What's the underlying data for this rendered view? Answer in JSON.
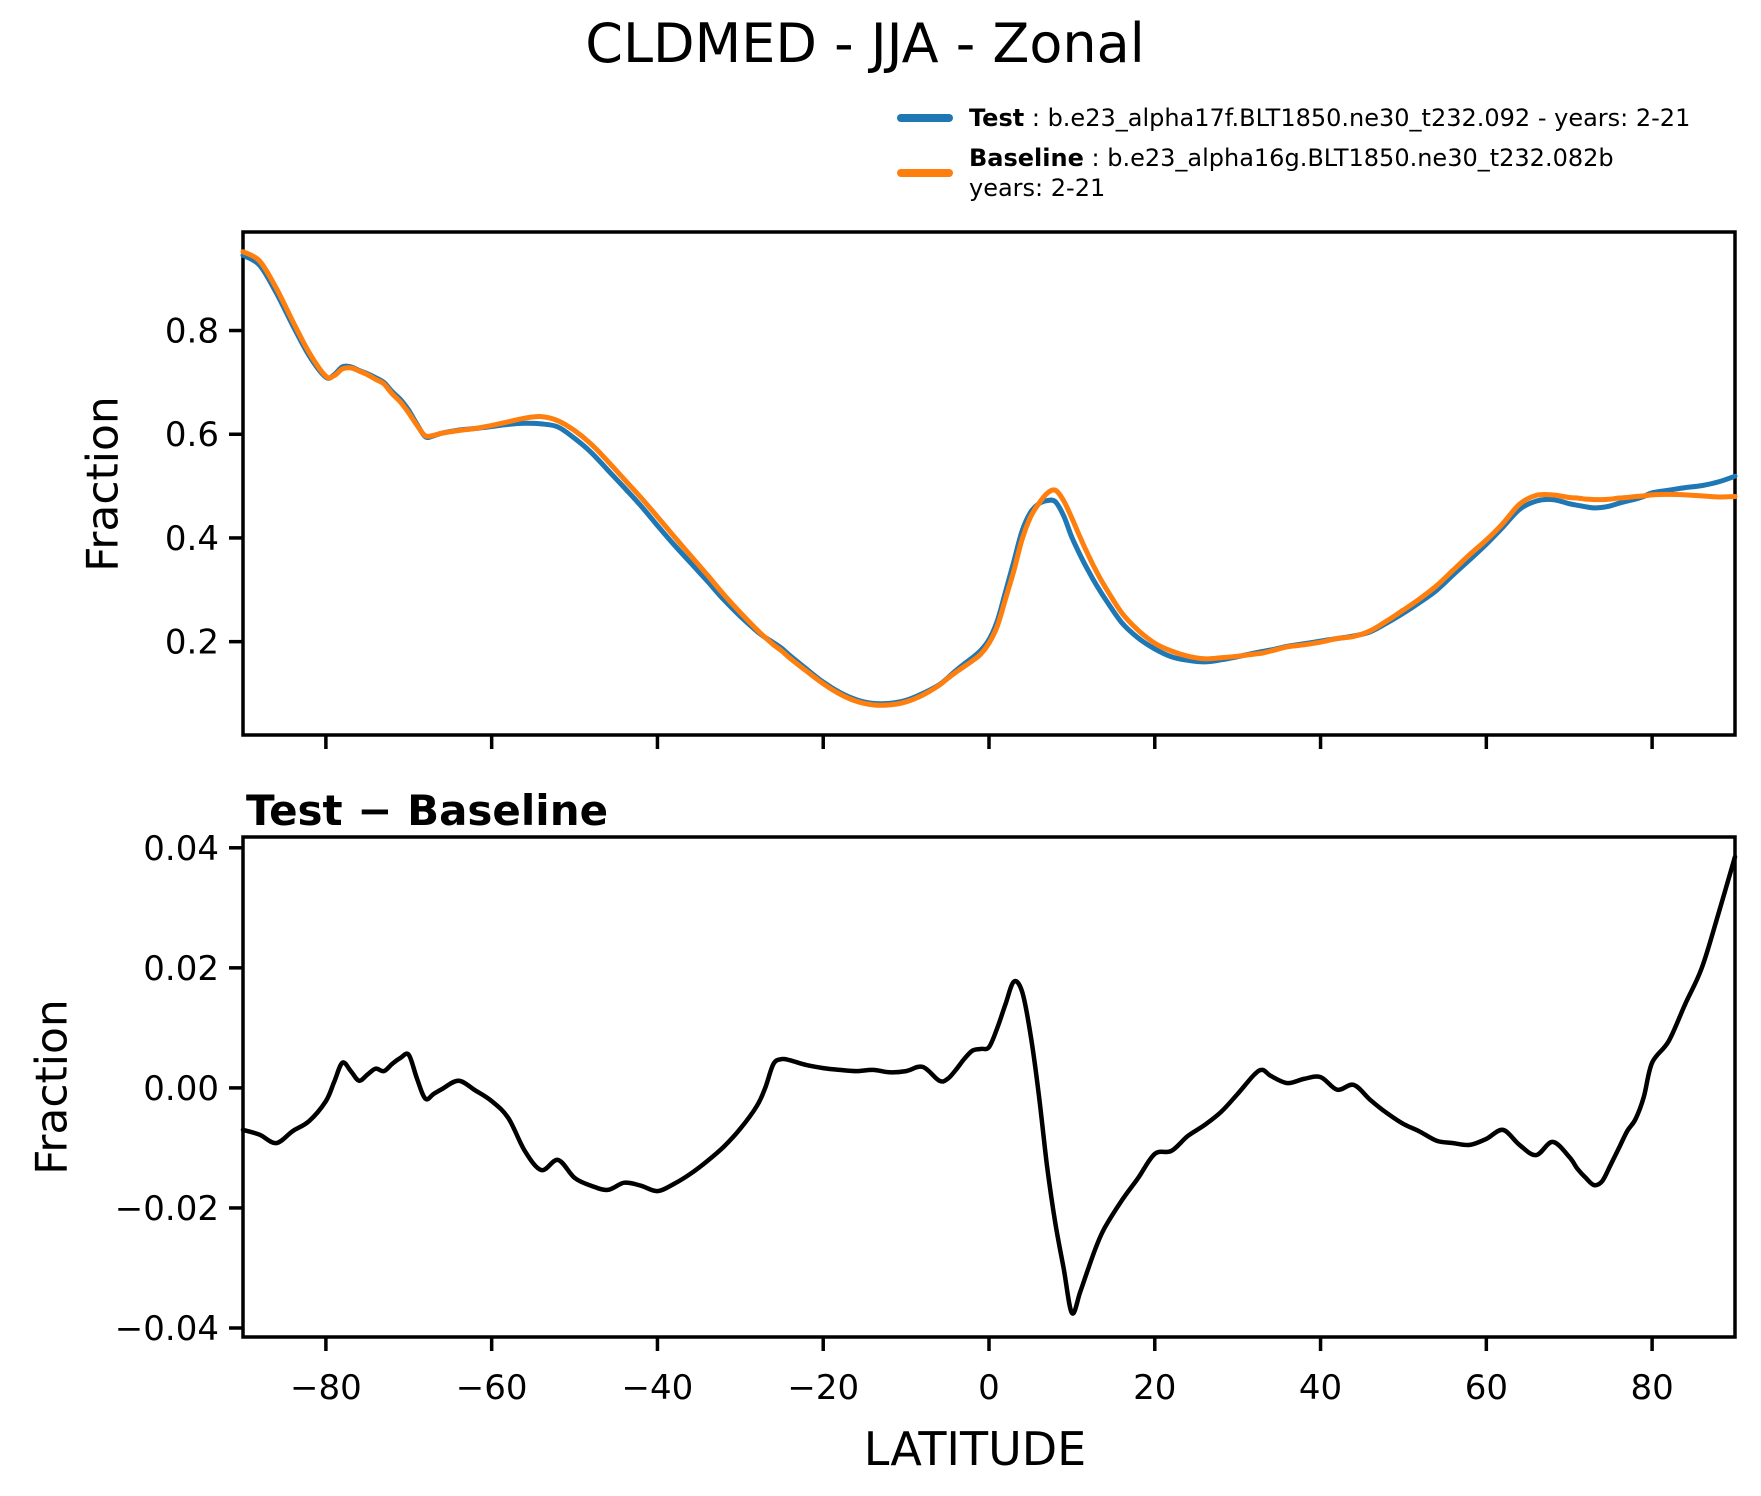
{
  "title": "CLDMED - JJA - Zonal",
  "legend": {
    "test_label": "Test",
    "test_desc": " : b.e23_alpha17f.BLT1850.ne30_t232.092 - years: 2-21",
    "baseline_label": "Baseline",
    "baseline_desc": " : b.e23_alpha16g.BLT1850.ne30_t232.082b",
    "baseline_desc2": "years: 2-21",
    "test_color": "#1f77b4",
    "baseline_color": "#ff7f0e"
  },
  "chart_data": [
    {
      "type": "line",
      "title": "",
      "ylabel": "Fraction",
      "xlabel": "",
      "legend_position": "upper right outside",
      "grid": false,
      "xlim": [
        -90,
        90
      ],
      "ylim": [
        0.02,
        0.99
      ],
      "yticks": [
        0.2,
        0.4,
        0.6,
        0.8
      ],
      "ytick_labels": [
        "0.2",
        "0.4",
        "0.6",
        "0.8"
      ],
      "xticks": [
        -80,
        -60,
        -40,
        -20,
        0,
        20,
        40,
        60,
        80
      ],
      "xtick_labels": [],
      "x": [
        -90,
        -88,
        -86,
        -84,
        -82,
        -80,
        -79,
        -78,
        -77,
        -76,
        -75,
        -74,
        -73,
        -72,
        -71,
        -70,
        -69,
        -68,
        -67,
        -66,
        -64,
        -62,
        -60,
        -58,
        -56,
        -54,
        -52,
        -50,
        -48,
        -46,
        -44,
        -42,
        -40,
        -38,
        -36,
        -34,
        -32,
        -30,
        -28,
        -27,
        -26,
        -25,
        -24,
        -22,
        -20,
        -18,
        -16,
        -14,
        -12,
        -10,
        -8,
        -6,
        -5,
        -4,
        -3,
        -2,
        -1,
        0,
        1,
        2,
        3,
        4,
        5,
        6,
        7,
        8,
        9,
        10,
        11,
        12,
        13,
        14,
        16,
        18,
        20,
        22,
        24,
        26,
        28,
        30,
        32,
        33,
        34,
        36,
        38,
        40,
        42,
        44,
        46,
        48,
        50,
        52,
        54,
        56,
        58,
        60,
        62,
        64,
        66,
        68,
        70,
        71,
        72,
        73,
        74,
        75,
        76,
        77,
        78,
        79,
        80,
        82,
        84,
        86,
        88,
        90
      ],
      "series": [
        {
          "name": "Test",
          "color": "#1f77b4",
          "values": [
            0.945,
            0.926,
            0.873,
            0.81,
            0.751,
            0.71,
            0.715,
            0.73,
            0.73,
            0.723,
            0.717,
            0.709,
            0.7,
            0.682,
            0.667,
            0.646,
            0.619,
            0.595,
            0.597,
            0.602,
            0.608,
            0.611,
            0.615,
            0.619,
            0.621,
            0.62,
            0.614,
            0.592,
            0.565,
            0.531,
            0.497,
            0.462,
            0.424,
            0.387,
            0.352,
            0.317,
            0.281,
            0.249,
            0.22,
            0.208,
            0.198,
            0.187,
            0.173,
            0.147,
            0.122,
            0.102,
            0.088,
            0.081,
            0.081,
            0.087,
            0.1,
            0.117,
            0.13,
            0.144,
            0.157,
            0.169,
            0.183,
            0.204,
            0.24,
            0.297,
            0.355,
            0.414,
            0.449,
            0.466,
            0.472,
            0.47,
            0.443,
            0.401,
            0.367,
            0.336,
            0.308,
            0.283,
            0.237,
            0.207,
            0.186,
            0.171,
            0.164,
            0.161,
            0.165,
            0.171,
            0.178,
            0.181,
            0.184,
            0.191,
            0.196,
            0.201,
            0.206,
            0.211,
            0.219,
            0.236,
            0.255,
            0.276,
            0.299,
            0.329,
            0.358,
            0.388,
            0.421,
            0.455,
            0.471,
            0.474,
            0.466,
            0.463,
            0.46,
            0.458,
            0.459,
            0.462,
            0.467,
            0.471,
            0.475,
            0.48,
            0.487,
            0.492,
            0.497,
            0.501,
            0.508,
            0.519
          ]
        },
        {
          "name": "Baseline",
          "color": "#ff7f0e",
          "values": [
            0.952,
            0.934,
            0.882,
            0.818,
            0.757,
            0.712,
            0.713,
            0.726,
            0.728,
            0.722,
            0.715,
            0.706,
            0.697,
            0.678,
            0.662,
            0.641,
            0.617,
            0.597,
            0.598,
            0.602,
            0.607,
            0.611,
            0.617,
            0.624,
            0.631,
            0.634,
            0.626,
            0.607,
            0.581,
            0.548,
            0.513,
            0.478,
            0.441,
            0.403,
            0.366,
            0.329,
            0.291,
            0.256,
            0.223,
            0.208,
            0.194,
            0.182,
            0.168,
            0.143,
            0.119,
            0.099,
            0.085,
            0.078,
            0.078,
            0.084,
            0.097,
            0.116,
            0.129,
            0.141,
            0.152,
            0.163,
            0.176,
            0.197,
            0.23,
            0.283,
            0.337,
            0.398,
            0.44,
            0.466,
            0.486,
            0.492,
            0.472,
            0.438,
            0.401,
            0.366,
            0.334,
            0.306,
            0.256,
            0.222,
            0.197,
            0.182,
            0.172,
            0.167,
            0.169,
            0.172,
            0.176,
            0.178,
            0.182,
            0.19,
            0.194,
            0.199,
            0.206,
            0.21,
            0.221,
            0.24,
            0.261,
            0.283,
            0.308,
            0.338,
            0.368,
            0.396,
            0.428,
            0.465,
            0.482,
            0.483,
            0.478,
            0.477,
            0.475,
            0.474,
            0.474,
            0.475,
            0.477,
            0.478,
            0.48,
            0.481,
            0.483,
            0.484,
            0.483,
            0.481,
            0.479,
            0.48
          ]
        }
      ]
    },
    {
      "type": "line",
      "title": "Test − Baseline",
      "ylabel": "Fraction",
      "xlabel": "LATITUDE",
      "grid": false,
      "xlim": [
        -90,
        90
      ],
      "ylim": [
        -0.0415,
        0.0418
      ],
      "yticks": [
        -0.04,
        -0.02,
        0.0,
        0.02,
        0.04
      ],
      "ytick_labels": [
        "−0.04",
        "−0.02",
        "0.00",
        "0.02",
        "0.04"
      ],
      "xticks": [
        -80,
        -60,
        -40,
        -20,
        0,
        20,
        40,
        60,
        80
      ],
      "xtick_labels": [
        "−80",
        "−60",
        "−40",
        "−20",
        "0",
        "20",
        "40",
        "60",
        "80"
      ],
      "x": [
        -90,
        -88,
        -86,
        -84,
        -82,
        -80,
        -79,
        -78,
        -77,
        -76,
        -75,
        -74,
        -73,
        -72,
        -71,
        -70,
        -69,
        -68,
        -67,
        -66,
        -64,
        -62,
        -60,
        -58,
        -56,
        -54,
        -52,
        -50,
        -48,
        -46,
        -44,
        -42,
        -40,
        -38,
        -36,
        -34,
        -32,
        -30,
        -28,
        -27,
        -26,
        -25,
        -24,
        -22,
        -20,
        -18,
        -16,
        -14,
        -12,
        -10,
        -8,
        -6,
        -5,
        -4,
        -3,
        -2,
        -1,
        0,
        1,
        2,
        3,
        4,
        5,
        6,
        7,
        8,
        9,
        10,
        11,
        12,
        13,
        14,
        16,
        18,
        20,
        22,
        24,
        26,
        28,
        30,
        32,
        33,
        34,
        36,
        38,
        40,
        42,
        44,
        46,
        48,
        50,
        52,
        54,
        56,
        58,
        60,
        62,
        64,
        66,
        68,
        70,
        71,
        72,
        73,
        74,
        75,
        76,
        77,
        78,
        79,
        80,
        82,
        84,
        86,
        88,
        90
      ],
      "series": [
        {
          "name": "Test − Baseline",
          "color": "#000000",
          "values": [
            -0.007,
            -0.0078,
            -0.0092,
            -0.0072,
            -0.0055,
            -0.0022,
            0.001,
            0.0042,
            0.0028,
            0.0012,
            0.0022,
            0.0032,
            0.0028,
            0.004,
            0.005,
            0.0055,
            0.0015,
            -0.0018,
            -0.001,
            -0.0002,
            0.0012,
            -0.0004,
            -0.0022,
            -0.005,
            -0.0105,
            -0.0137,
            -0.012,
            -0.015,
            -0.0163,
            -0.017,
            -0.0158,
            -0.0163,
            -0.0172,
            -0.016,
            -0.0143,
            -0.0122,
            -0.0098,
            -0.0068,
            -0.003,
            0.0,
            0.004,
            0.0048,
            0.0046,
            0.0038,
            0.0033,
            0.003,
            0.0028,
            0.003,
            0.0026,
            0.0028,
            0.0035,
            0.0012,
            0.0015,
            0.003,
            0.0048,
            0.0062,
            0.0065,
            0.0068,
            0.01,
            0.014,
            0.0177,
            0.016,
            0.009,
            -0.001,
            -0.013,
            -0.0225,
            -0.03,
            -0.0375,
            -0.034,
            -0.03,
            -0.0262,
            -0.0232,
            -0.0188,
            -0.015,
            -0.011,
            -0.0105,
            -0.008,
            -0.0062,
            -0.004,
            -0.001,
            0.0022,
            0.003,
            0.002,
            0.0008,
            0.0015,
            0.0018,
            -0.0003,
            0.0005,
            -0.002,
            -0.0042,
            -0.006,
            -0.0073,
            -0.0088,
            -0.0092,
            -0.0095,
            -0.0085,
            -0.007,
            -0.0095,
            -0.0112,
            -0.009,
            -0.0115,
            -0.0135,
            -0.015,
            -0.0162,
            -0.0155,
            -0.0128,
            -0.01,
            -0.0072,
            -0.0052,
            -0.0015,
            0.0042,
            0.0078,
            0.014,
            0.02,
            0.029,
            0.0385
          ]
        }
      ]
    }
  ]
}
